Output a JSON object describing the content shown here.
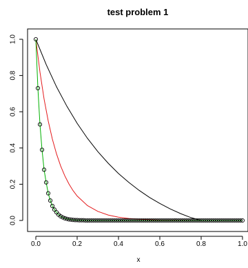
{
  "chart_data": {
    "type": "line",
    "title": "test problem 1",
    "xlabel": "x",
    "ylabel": "",
    "xlim": [
      0,
      1
    ],
    "ylim": [
      0,
      1
    ],
    "x_ticks": [
      "0.0",
      "0.2",
      "0.4",
      "0.6",
      "0.8",
      "1.0"
    ],
    "y_ticks": [
      "0.0",
      "0.2",
      "0.4",
      "0.6",
      "0.8",
      "1.0"
    ],
    "grid": false,
    "legend": "none",
    "series": [
      {
        "color": "#000000",
        "style": "line",
        "x": [
          0,
          0.05,
          0.1,
          0.15,
          0.2,
          0.25,
          0.3,
          0.35,
          0.4,
          0.45,
          0.5,
          0.55,
          0.6,
          0.65,
          0.7,
          0.75,
          0.8,
          0.85,
          0.9,
          0.95,
          1.0
        ],
        "values": [
          1.0,
          0.861,
          0.738,
          0.631,
          0.536,
          0.453,
          0.38,
          0.316,
          0.259,
          0.21,
          0.166,
          0.127,
          0.094,
          0.064,
          0.038,
          0.016,
          0.0,
          0.0,
          0.0,
          0.0,
          0.0
        ]
      },
      {
        "color": "#e41a1c",
        "style": "line",
        "x": [
          0,
          0.02,
          0.04,
          0.06,
          0.08,
          0.1,
          0.12,
          0.14,
          0.16,
          0.18,
          0.2,
          0.25,
          0.3,
          0.35,
          0.4,
          0.45,
          0.5,
          0.6,
          0.7,
          0.8,
          0.9,
          1.0
        ],
        "values": [
          1.0,
          0.819,
          0.67,
          0.549,
          0.449,
          0.368,
          0.301,
          0.247,
          0.202,
          0.165,
          0.135,
          0.082,
          0.05,
          0.03,
          0.018,
          0.011,
          0.007,
          0.002,
          0.001,
          0.0,
          0.0,
          0.0
        ]
      },
      {
        "color": "#00b000",
        "style": "line+points",
        "x": [
          0,
          0.01,
          0.02,
          0.03,
          0.04,
          0.05,
          0.06,
          0.07,
          0.08,
          0.09,
          0.1,
          0.11,
          0.12,
          0.13,
          0.14,
          0.15,
          0.16,
          0.17,
          0.18,
          0.19,
          0.2,
          0.21,
          0.22,
          0.23,
          0.24,
          0.25,
          0.26,
          0.27,
          0.28,
          0.29,
          0.3,
          0.31,
          0.32,
          0.33,
          0.34,
          0.35,
          0.36,
          0.37,
          0.38,
          0.39,
          0.4,
          0.41,
          0.42,
          0.43,
          0.44,
          0.45,
          0.46,
          0.47,
          0.48,
          0.49,
          0.5,
          0.51,
          0.52,
          0.53,
          0.54,
          0.55,
          0.56,
          0.57,
          0.58,
          0.59,
          0.6,
          0.61,
          0.62,
          0.63,
          0.64,
          0.65,
          0.66,
          0.67,
          0.68,
          0.69,
          0.7,
          0.71,
          0.72,
          0.73,
          0.74,
          0.75,
          0.76,
          0.77,
          0.78,
          0.79,
          0.8,
          0.81,
          0.82,
          0.83,
          0.84,
          0.85,
          0.86,
          0.87,
          0.88,
          0.89,
          0.9,
          0.91,
          0.92,
          0.93,
          0.94,
          0.95,
          0.96,
          0.97,
          0.98,
          0.99,
          1.0
        ],
        "values": [
          1.0,
          0.73,
          0.53,
          0.39,
          0.28,
          0.21,
          0.15,
          0.11,
          0.08,
          0.06,
          0.045,
          0.032,
          0.023,
          0.017,
          0.012,
          0.009,
          0.006,
          0.005,
          0.003,
          0.002,
          0.002,
          0.001,
          0.001,
          0.001,
          0.0,
          0.0,
          0.0,
          0.0,
          0.0,
          0.0,
          0.0,
          0.0,
          0.0,
          0.0,
          0.0,
          0.0,
          0.0,
          0.0,
          0.0,
          0.0,
          0.0,
          0.0,
          0.0,
          0.0,
          0.0,
          0.0,
          0.0,
          0.0,
          0.0,
          0.0,
          0.0,
          0.0,
          0.0,
          0.0,
          0.0,
          0.0,
          0.0,
          0.0,
          0.0,
          0.0,
          0.0,
          0.0,
          0.0,
          0.0,
          0.0,
          0.0,
          0.0,
          0.0,
          0.0,
          0.0,
          0.0,
          0.0,
          0.0,
          0.0,
          0.0,
          0.0,
          0.0,
          0.0,
          0.0,
          0.0,
          0.0,
          0.0,
          0.0,
          0.0,
          0.0,
          0.0,
          0.0,
          0.0,
          0.0,
          0.0,
          0.0,
          0.0,
          0.0,
          0.0,
          0.0,
          0.0,
          0.0,
          0.0,
          0.0,
          0.0,
          0.0
        ]
      }
    ]
  }
}
